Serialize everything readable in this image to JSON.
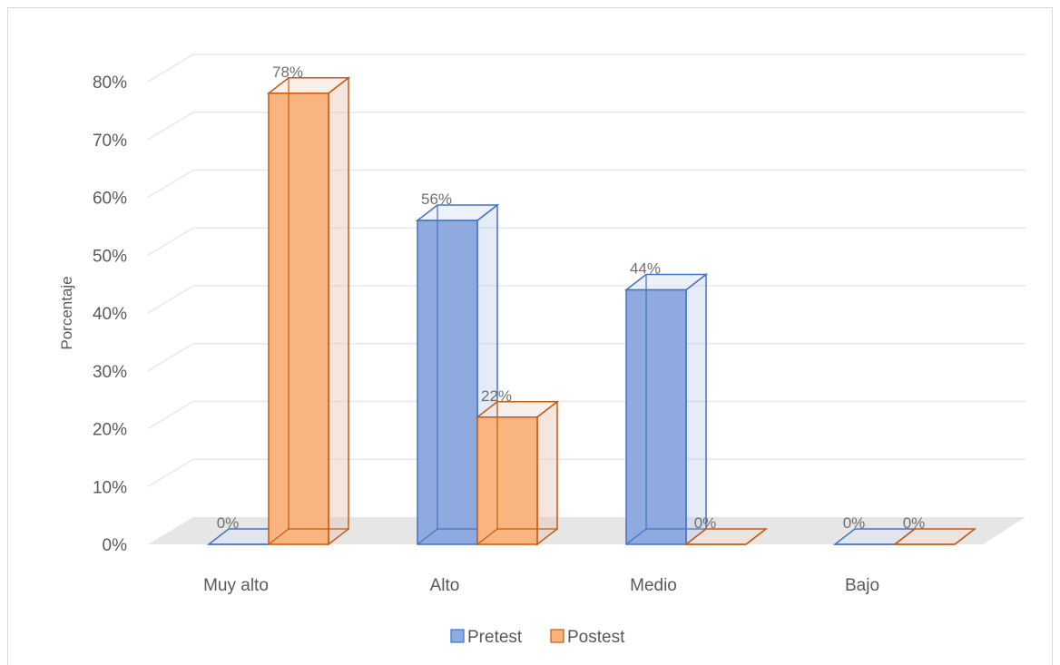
{
  "chart_data": {
    "type": "bar",
    "categories": [
      "Muy alto",
      "Alto",
      "Medio",
      "Bajo"
    ],
    "series": [
      {
        "name": "Pretest",
        "values": [
          0,
          56,
          44,
          0
        ],
        "color": "#4472c4",
        "fill": "#8eaadf"
      },
      {
        "name": "Postest",
        "values": [
          78,
          22,
          0,
          0
        ],
        "color": "#c55a11",
        "fill": "#f9b47f"
      }
    ],
    "data_labels": [
      [
        "0%",
        "56%",
        "44%",
        "0%"
      ],
      [
        "78%",
        "22%",
        "0%",
        "0%"
      ]
    ],
    "ylabel": "Porcentaje",
    "xlabel": "",
    "ylim": [
      0,
      80
    ],
    "yticks": [
      "0%",
      "10%",
      "20%",
      "30%",
      "40%",
      "50%",
      "60%",
      "70%",
      "80%"
    ],
    "grid": true,
    "legend": "bottom",
    "style": "3d-column"
  }
}
